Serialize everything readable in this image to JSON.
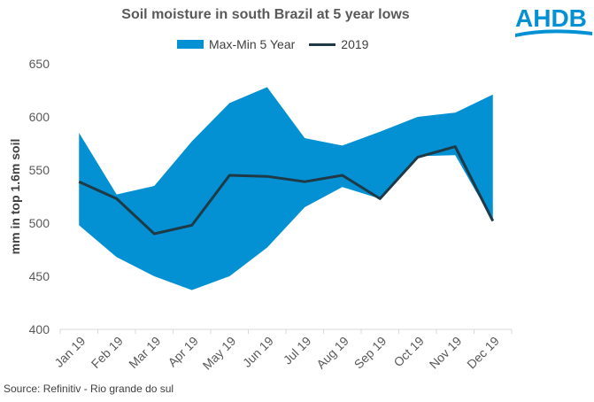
{
  "chart_data": {
    "type": "area",
    "title": "Soil moisture in south Brazil at 5 year lows",
    "ylabel": "mm in top 1.6m soil",
    "xlabel": "",
    "ylim": [
      400,
      650
    ],
    "yticks": [
      400,
      450,
      500,
      550,
      600,
      650
    ],
    "categories": [
      "Jan 19",
      "Feb 19",
      "Mar 19",
      "Apr 19",
      "May 19",
      "Jun 19",
      "Jul 19",
      "Aug 19",
      "Sep 19",
      "Oct 19",
      "Nov 19",
      "Dec 19"
    ],
    "series": [
      {
        "name": "Max-Min 5 Year",
        "type": "range",
        "color": "#0391d3",
        "max": [
          585,
          527,
          535,
          577,
          613,
          628,
          580,
          573,
          586,
          600,
          604,
          621
        ],
        "min": [
          498,
          468,
          450,
          437,
          450,
          477,
          515,
          534,
          523,
          563,
          564,
          502
        ]
      },
      {
        "name": "2019",
        "type": "line",
        "color": "#1e3a47",
        "values": [
          539,
          523,
          490,
          498,
          545,
          544,
          539,
          545,
          523,
          562,
          572,
          502
        ]
      }
    ],
    "legend": "top",
    "grid": false
  },
  "source": "Source: Refinitiv - Rio grande do sul",
  "logo": "AHDB"
}
